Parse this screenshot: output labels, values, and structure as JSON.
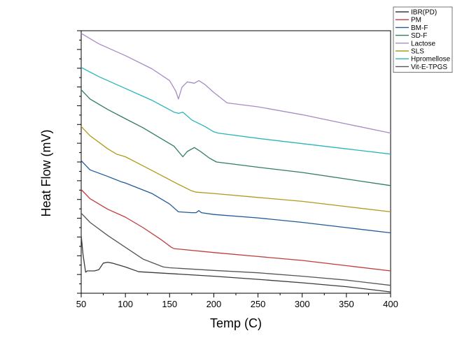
{
  "chart_data": {
    "type": "line",
    "title": "",
    "xlabel": "Temp (C)",
    "ylabel": "Heat Flow (mV)",
    "xlim": [
      50,
      400
    ],
    "ylim": [
      0,
      100
    ],
    "x_ticks": [
      50,
      100,
      150,
      200,
      250,
      300,
      350,
      400
    ],
    "y_tick_labels_shown": false,
    "grid": false,
    "legend_position": "top-right",
    "series": [
      {
        "name": "IBR(PD)",
        "color": "#3a3a3a",
        "x": [
          50,
          52,
          55,
          57,
          65,
          70,
          75,
          80,
          85,
          90,
          100,
          115,
          150,
          200,
          250,
          300,
          350,
          400
        ],
        "y": [
          22.0,
          15.0,
          8.0,
          8.5,
          8.5,
          9.0,
          11.5,
          11.8,
          11.5,
          11.0,
          10.0,
          8.2,
          7.5,
          6.5,
          5.3,
          4.0,
          2.5,
          0.5
        ]
      },
      {
        "name": "PM",
        "color": "#c23b3b",
        "x": [
          50,
          60,
          80,
          100,
          120,
          140,
          152,
          155,
          200,
          250,
          300,
          350,
          400
        ],
        "y": [
          39.5,
          36.0,
          32.0,
          29.0,
          25.0,
          20.5,
          17.5,
          17.0,
          15.5,
          14.0,
          12.5,
          10.5,
          8.5
        ]
      },
      {
        "name": "BM-F",
        "color": "#1f5a99",
        "x": [
          50,
          60,
          80,
          95,
          100,
          130,
          150,
          160,
          175,
          180,
          183,
          186,
          200,
          250,
          300,
          350,
          400
        ],
        "y": [
          50.5,
          47.0,
          44.5,
          42.5,
          42.0,
          38.0,
          34.0,
          31.0,
          30.7,
          30.7,
          31.5,
          30.7,
          30.0,
          28.7,
          27.0,
          25.0,
          23.0
        ]
      },
      {
        "name": "SD-F",
        "color": "#2f7d5c",
        "x": [
          50,
          60,
          80,
          100,
          120,
          140,
          155,
          160,
          165,
          170,
          178,
          185,
          195,
          203,
          250,
          300,
          350,
          400
        ],
        "y": [
          77.5,
          74.0,
          70.0,
          66.5,
          63.0,
          59.0,
          56.0,
          54.0,
          52.0,
          54.0,
          55.5,
          54.0,
          51.5,
          50.0,
          48.0,
          46.0,
          43.5,
          41.0
        ]
      },
      {
        "name": "Lactose",
        "color": "#a88bc4",
        "x": [
          50,
          70,
          100,
          130,
          150,
          157,
          160,
          164,
          170,
          178,
          183,
          190,
          200,
          215,
          250,
          300,
          350,
          400
        ],
        "y": [
          99.0,
          95.0,
          90.5,
          85.5,
          81.0,
          77.0,
          74.0,
          78.5,
          80.5,
          80.0,
          81.0,
          79.5,
          76.5,
          72.5,
          71.0,
          68.0,
          64.5,
          61.0
        ]
      },
      {
        "name": "SLS",
        "color": "#b09a1c",
        "x": [
          50,
          60,
          70,
          80,
          90,
          100,
          120,
          140,
          160,
          175,
          180,
          200,
          250,
          300,
          350,
          400
        ],
        "y": [
          63.5,
          60.0,
          57.5,
          55.0,
          53.0,
          52.0,
          48.5,
          45.0,
          41.5,
          39.0,
          38.5,
          38.0,
          36.5,
          35.0,
          33.0,
          31.0
        ]
      },
      {
        "name": "Hpromellose",
        "color": "#2ab5b8",
        "x": [
          50,
          70,
          100,
          130,
          155,
          160,
          165,
          175,
          190,
          200,
          205,
          250,
          300,
          350,
          400
        ],
        "y": [
          86.0,
          82.5,
          78.0,
          73.5,
          69.0,
          68.5,
          69.0,
          66.0,
          63.5,
          61.5,
          61.0,
          59.0,
          57.0,
          55.0,
          53.0
        ]
      },
      {
        "name": "Vit-E-TPGS",
        "color": "#555555",
        "x": [
          50,
          60,
          80,
          100,
          120,
          143,
          150,
          200,
          250,
          300,
          350,
          400
        ],
        "y": [
          30.5,
          27.0,
          22.0,
          17.5,
          13.0,
          10.0,
          9.7,
          8.7,
          7.8,
          6.5,
          5.0,
          3.0
        ]
      }
    ]
  }
}
